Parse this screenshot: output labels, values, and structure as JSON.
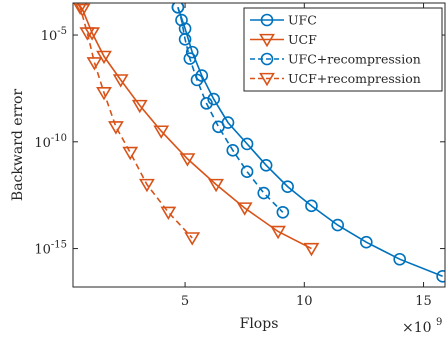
{
  "chart_data": {
    "type": "line",
    "title": "",
    "xlabel": "Flops",
    "ylabel": "Backward error",
    "x_multiplier_label": "×10",
    "x_multiplier_exponent": "9",
    "xlim": [
      0.3,
      15.9
    ],
    "ylim_log10": [
      -16.8,
      -3.5
    ],
    "y_scale": "log",
    "grid": false,
    "legend_position": "top-right",
    "x_ticks": [
      {
        "value": 5,
        "label": "5"
      },
      {
        "value": 10,
        "label": "10"
      },
      {
        "value": 15,
        "label": "15"
      }
    ],
    "y_ticks": [
      {
        "value": -5,
        "label": "10",
        "exp": "-5"
      },
      {
        "value": -10,
        "label": "10",
        "exp": "-10"
      },
      {
        "value": -15,
        "label": "10",
        "exp": "-15"
      }
    ],
    "series": [
      {
        "name": "UFC",
        "color": "#0072BD",
        "marker": "circle",
        "dash": "solid",
        "x": [
          4.7,
          5.0,
          5.3,
          5.7,
          6.2,
          6.8,
          7.6,
          8.4,
          9.3,
          10.3,
          11.4,
          12.6,
          14.0,
          15.8
        ],
        "y_log10": [
          -3.7,
          -4.7,
          -5.8,
          -6.9,
          -8.0,
          -9.1,
          -10.1,
          -11.1,
          -12.1,
          -13.0,
          -13.9,
          -14.7,
          -15.5,
          -16.3
        ]
      },
      {
        "name": "UCF",
        "color": "#D95319",
        "marker": "triangle-down",
        "dash": "solid",
        "x": [
          0.3,
          0.7,
          1.1,
          1.6,
          2.3,
          3.1,
          4.0,
          5.1,
          6.3,
          7.5,
          8.9,
          10.3
        ],
        "y_log10": [
          -3.2,
          -3.8,
          -4.9,
          -6.0,
          -7.1,
          -8.3,
          -9.5,
          -10.8,
          -12.0,
          -13.1,
          -14.2,
          -15.0
        ]
      },
      {
        "name": "UFC+recompression",
        "color": "#0072BD",
        "marker": "circle",
        "dash": "dashed",
        "x": [
          4.7,
          4.85,
          5.0,
          5.2,
          5.5,
          5.9,
          6.4,
          7.0,
          7.6,
          8.3,
          9.1
        ],
        "y_log10": [
          -3.7,
          -4.3,
          -5.2,
          -6.1,
          -7.1,
          -8.2,
          -9.3,
          -10.4,
          -11.4,
          -12.4,
          -13.3
        ]
      },
      {
        "name": "UCF+recompression",
        "color": "#D95319",
        "marker": "triangle-down",
        "dash": "dashed",
        "x": [
          0.3,
          0.6,
          0.9,
          1.2,
          1.6,
          2.1,
          2.7,
          3.4,
          4.3,
          5.3
        ],
        "y_log10": [
          -3.2,
          -3.7,
          -4.9,
          -6.3,
          -7.7,
          -9.3,
          -10.5,
          -12.0,
          -13.3,
          -14.5
        ]
      }
    ]
  }
}
